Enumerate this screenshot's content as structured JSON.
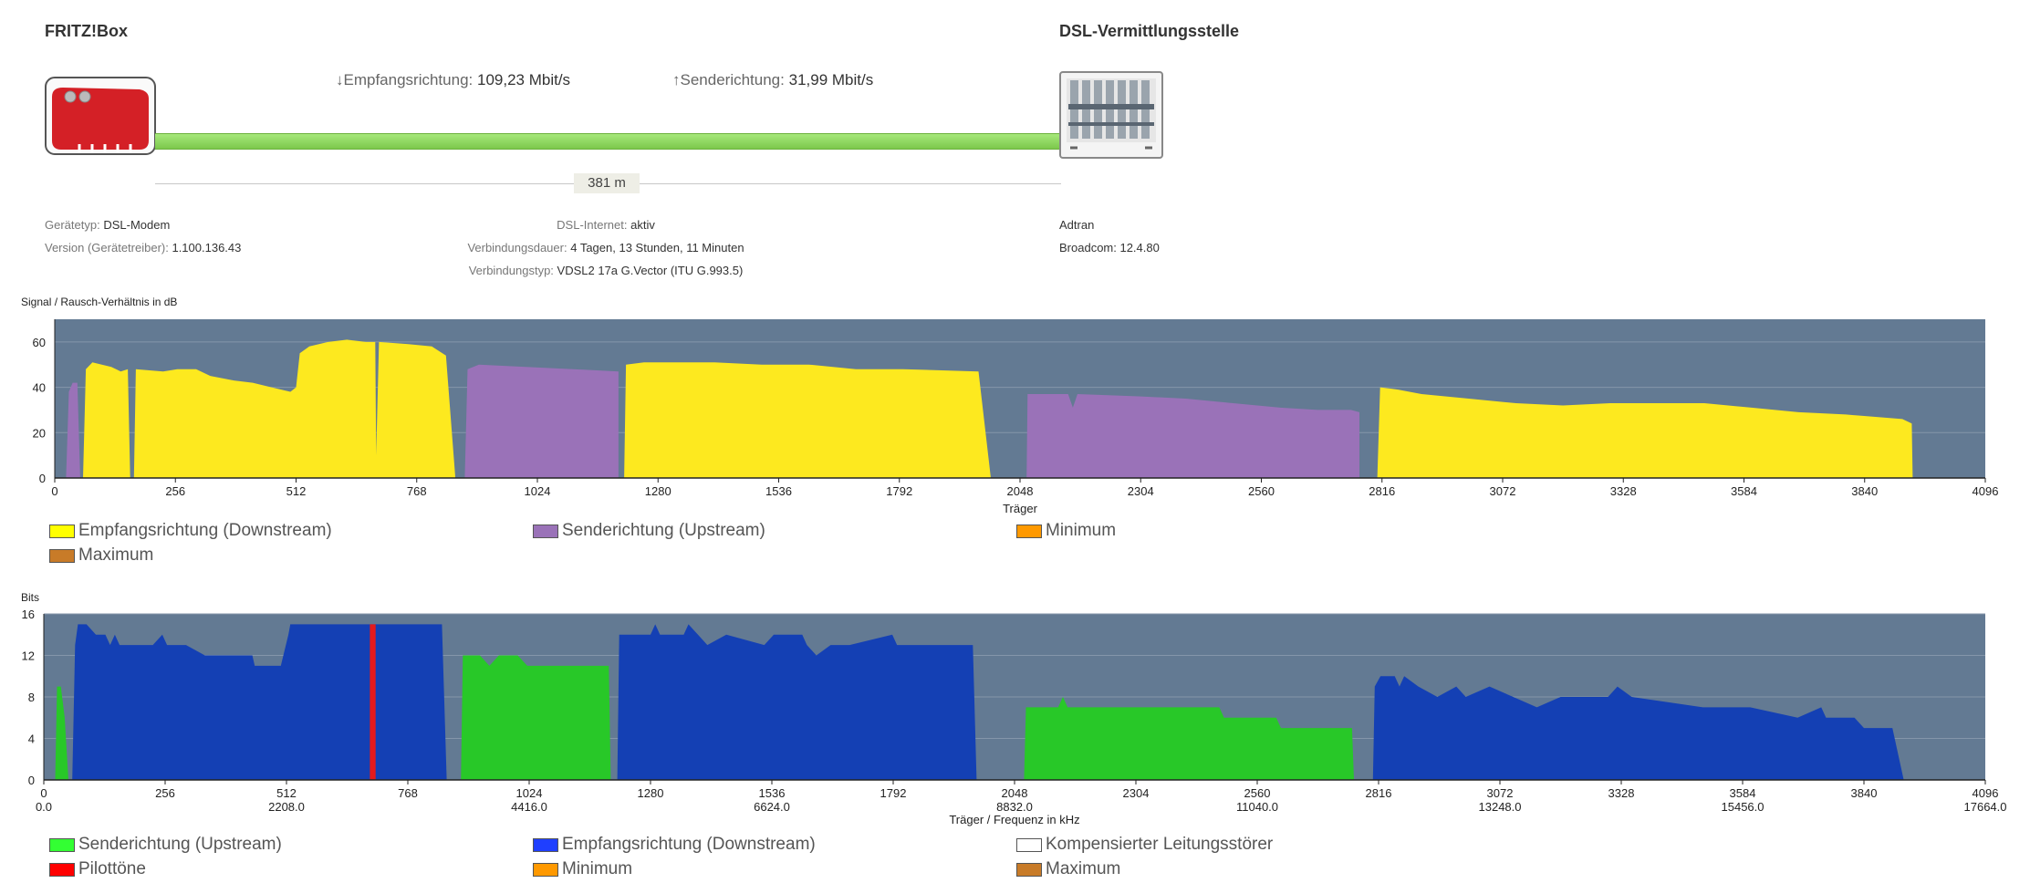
{
  "header": {
    "left_title": "FRITZ!Box",
    "right_title": "DSL-Vermittlungsstelle",
    "down_arrow": "↓",
    "down_label": "Empfangsrichtung:",
    "down_value": "109,23 Mbit/s",
    "up_arrow": "↑",
    "up_label": "Senderichtung:",
    "up_value": "31,99 Mbit/s",
    "distance": "381 m"
  },
  "info": {
    "left": [
      {
        "label": "Gerätetyp:",
        "value": "DSL-Modem"
      },
      {
        "label": "Version (Gerätetreiber):",
        "value": "1.100.136.43"
      }
    ],
    "center": [
      {
        "label": "DSL-Internet:",
        "value": "aktiv"
      },
      {
        "label": "Verbindungsdauer:",
        "value": "4 Tagen, 13 Stunden, 11 Minuten"
      },
      {
        "label": "Verbindungstyp:",
        "value": "VDSL2 17a G.Vector (ITU G.993.5)"
      }
    ],
    "right": [
      "Adtran",
      "Broadcom: 12.4.80"
    ]
  },
  "colors": {
    "plot_bg": "#637a93",
    "downstream_snr": "#fde91f",
    "upstream_snr": "#9a72b8",
    "downstream_bits": "#1440b4",
    "upstream_bits": "#28c828",
    "pilot": "#e41a1c",
    "minimum": "#ff9900",
    "maximum": "#c87b28",
    "line": "#8cd65a"
  },
  "chart_data": [
    {
      "type": "area",
      "title": "Signal / Rausch-Verhältnis in dB",
      "xlabel": "Träger",
      "ylabel": "Signal / Rausch-Verhältnis in dB",
      "xlim": [
        0,
        4096
      ],
      "ylim": [
        0,
        70
      ],
      "xticks": [
        "0",
        "256",
        "512",
        "768",
        "1024",
        "1280",
        "1536",
        "1792",
        "2048",
        "2304",
        "2560",
        "2816",
        "3072",
        "3328",
        "3584",
        "3840",
        "4096"
      ],
      "yticks": [
        "0",
        "20",
        "40",
        "60"
      ],
      "legend": [
        {
          "label": "Empfangsrichtung (Downstream)",
          "color": "#ffff00"
        },
        {
          "label": "Senderichtung (Upstream)",
          "color": "#9a72b8"
        },
        {
          "label": "Minimum",
          "color": "#ff9900"
        },
        {
          "label": "Maximum",
          "color": "#c87b28"
        }
      ],
      "series": [
        {
          "name": "Senderichtung (Upstream)",
          "segments": [
            [
              [
                24,
                0
              ],
              [
                30,
                38
              ],
              [
                38,
                42
              ],
              [
                48,
                42
              ],
              [
                54,
                0
              ]
            ],
            [
              [
                870,
                0
              ],
              [
                876,
                48
              ],
              [
                900,
                50
              ],
              [
                1000,
                49
              ],
              [
                1100,
                48
              ],
              [
                1196,
                47
              ],
              [
                1196,
                0
              ]
            ],
            [
              [
                2062,
                0
              ],
              [
                2064,
                37
              ],
              [
                2100,
                37
              ],
              [
                2150,
                37
              ],
              [
                2160,
                31
              ],
              [
                2170,
                37
              ],
              [
                2300,
                36
              ],
              [
                2400,
                35
              ],
              [
                2500,
                33
              ],
              [
                2600,
                31
              ],
              [
                2680,
                30
              ],
              [
                2750,
                30
              ],
              [
                2768,
                29
              ],
              [
                2768,
                0
              ]
            ]
          ]
        },
        {
          "name": "Empfangsrichtung (Downstream)",
          "segments": [
            [
              [
                60,
                0
              ],
              [
                66,
                48
              ],
              [
                80,
                51
              ],
              [
                120,
                49
              ],
              [
                140,
                47
              ],
              [
                155,
                48
              ],
              [
                160,
                0
              ],
              [
                168,
                0
              ],
              [
                172,
                48
              ],
              [
                230,
                47
              ],
              [
                260,
                48
              ],
              [
                300,
                48
              ],
              [
                330,
                45
              ],
              [
                380,
                43
              ],
              [
                420,
                42
              ],
              [
                460,
                40
              ],
              [
                500,
                38
              ],
              [
                512,
                40
              ],
              [
                520,
                55
              ],
              [
                540,
                58
              ],
              [
                580,
                60
              ],
              [
                620,
                61
              ],
              [
                660,
                60
              ],
              [
                680,
                60
              ],
              [
                682,
                10
              ],
              [
                688,
                60
              ],
              [
                750,
                59
              ],
              [
                800,
                58
              ],
              [
                830,
                54
              ],
              [
                850,
                0
              ]
            ],
            [
              [
                1208,
                0
              ],
              [
                1212,
                50
              ],
              [
                1250,
                51
              ],
              [
                1400,
                51
              ],
              [
                1500,
                50
              ],
              [
                1600,
                50
              ],
              [
                1700,
                48
              ],
              [
                1800,
                48
              ],
              [
                1960,
                47
              ],
              [
                1986,
                0
              ]
            ],
            [
              [
                2806,
                0
              ],
              [
                2812,
                40
              ],
              [
                2850,
                39
              ],
              [
                2900,
                37
              ],
              [
                3000,
                35
              ],
              [
                3100,
                33
              ],
              [
                3200,
                32
              ],
              [
                3300,
                33
              ],
              [
                3400,
                33
              ],
              [
                3500,
                33
              ],
              [
                3600,
                31
              ],
              [
                3700,
                29
              ],
              [
                3800,
                28
              ],
              [
                3860,
                27
              ],
              [
                3920,
                26
              ],
              [
                3940,
                24
              ],
              [
                3942,
                0
              ]
            ]
          ]
        }
      ]
    },
    {
      "type": "area",
      "title": "Bits",
      "xlabel": "Träger / Frequenz in kHz",
      "ylabel": "Bits",
      "xlim": [
        0,
        4096
      ],
      "ylim": [
        0,
        16
      ],
      "xticks": [
        "0",
        "256",
        "512",
        "768",
        "1024",
        "1280",
        "1536",
        "1792",
        "2048",
        "2304",
        "2560",
        "2816",
        "3072",
        "3328",
        "3584",
        "3840",
        "4096"
      ],
      "xticks_freq": [
        "0.0",
        "",
        "2208.0",
        "",
        "4416.0",
        "",
        "6624.0",
        "",
        "8832.0",
        "",
        "11040.0",
        "",
        "13248.0",
        "",
        "15456.0",
        "",
        "17664.0"
      ],
      "yticks": [
        "0",
        "4",
        "8",
        "12",
        "16"
      ],
      "legend": [
        {
          "label": "Senderichtung (Upstream)",
          "color": "#33ff33"
        },
        {
          "label": "Empfangsrichtung (Downstream)",
          "color": "#1f3fff"
        },
        {
          "label": "Kompensierter Leitungsstörer",
          "color": "#ffffff"
        },
        {
          "label": "Pilottöne",
          "color": "#ff0000"
        },
        {
          "label": "Minimum",
          "color": "#ff9900"
        },
        {
          "label": "Maximum",
          "color": "#c87b28"
        }
      ],
      "series": [
        {
          "name": "Senderichtung (Upstream)",
          "segments": [
            [
              [
                24,
                0
              ],
              [
                28,
                9
              ],
              [
                36,
                9
              ],
              [
                44,
                6
              ],
              [
                52,
                0
              ]
            ],
            [
              [
                880,
                0
              ],
              [
                884,
                12
              ],
              [
                920,
                12
              ],
              [
                940,
                11
              ],
              [
                960,
                12
              ],
              [
                1000,
                12
              ],
              [
                1020,
                11
              ],
              [
                1060,
                11
              ],
              [
                1100,
                11
              ],
              [
                1192,
                11
              ],
              [
                1196,
                0
              ]
            ],
            [
              [
                2068,
                0
              ],
              [
                2072,
                7
              ],
              [
                2140,
                7
              ],
              [
                2150,
                8
              ],
              [
                2160,
                7
              ],
              [
                2300,
                7
              ],
              [
                2400,
                7
              ],
              [
                2480,
                7
              ],
              [
                2490,
                6
              ],
              [
                2600,
                6
              ],
              [
                2610,
                5
              ],
              [
                2760,
                5
              ],
              [
                2764,
                0
              ]
            ]
          ]
        },
        {
          "name": "Empfangsrichtung (Downstream)",
          "segments": [
            [
              [
                60,
                0
              ],
              [
                66,
                13
              ],
              [
                72,
                15
              ],
              [
                90,
                15
              ],
              [
                110,
                14
              ],
              [
                130,
                14
              ],
              [
                140,
                13
              ],
              [
                150,
                14
              ],
              [
                160,
                13
              ],
              [
                176,
                13
              ],
              [
                230,
                13
              ],
              [
                250,
                14
              ],
              [
                260,
                13
              ],
              [
                300,
                13
              ],
              [
                340,
                12
              ],
              [
                440,
                12
              ],
              [
                445,
                11
              ],
              [
                500,
                11
              ],
              [
                516,
                14
              ],
              [
                520,
                15
              ],
              [
                700,
                15
              ],
              [
                840,
                15
              ],
              [
                850,
                0
              ]
            ],
            [
              [
                1210,
                0
              ],
              [
                1214,
                14
              ],
              [
                1280,
                14
              ],
              [
                1290,
                15
              ],
              [
                1300,
                14
              ],
              [
                1350,
                14
              ],
              [
                1360,
                15
              ],
              [
                1380,
                14
              ],
              [
                1400,
                13
              ],
              [
                1440,
                14
              ],
              [
                1520,
                13
              ],
              [
                1540,
                14
              ],
              [
                1600,
                14
              ],
              [
                1610,
                13
              ],
              [
                1630,
                12
              ],
              [
                1660,
                13
              ],
              [
                1700,
                13
              ],
              [
                1790,
                14
              ],
              [
                1800,
                13
              ],
              [
                1900,
                13
              ],
              [
                1960,
                13
              ],
              [
                1968,
                0
              ]
            ],
            [
              [
                2804,
                0
              ],
              [
                2808,
                9
              ],
              [
                2820,
                10
              ],
              [
                2850,
                10
              ],
              [
                2860,
                9
              ],
              [
                2870,
                10
              ],
              [
                2900,
                9
              ],
              [
                2940,
                8
              ],
              [
                2980,
                9
              ],
              [
                3000,
                8
              ],
              [
                3050,
                9
              ],
              [
                3100,
                8
              ],
              [
                3150,
                7
              ],
              [
                3200,
                8
              ],
              [
                3300,
                8
              ],
              [
                3320,
                9
              ],
              [
                3350,
                8
              ],
              [
                3500,
                7
              ],
              [
                3570,
                7
              ],
              [
                3580,
                7
              ],
              [
                3600,
                7
              ],
              [
                3700,
                6
              ],
              [
                3750,
                7
              ],
              [
                3760,
                6
              ],
              [
                3800,
                6
              ],
              [
                3820,
                6
              ],
              [
                3840,
                5
              ],
              [
                3900,
                5
              ],
              [
                3924,
                0
              ]
            ]
          ]
        },
        {
          "name": "Pilottöne",
          "segments": [
            [
              [
                688,
                0
              ],
              [
                688,
                15
              ],
              [
                700,
                15
              ],
              [
                700,
                0
              ]
            ]
          ]
        }
      ]
    }
  ]
}
